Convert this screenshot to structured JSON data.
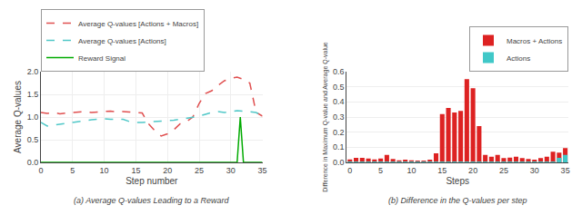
{
  "chart_data": [
    {
      "type": "line",
      "title": "(a) Average Q-values Leading to a Reward",
      "xlabel": "Step number",
      "ylabel": "Average Q-values",
      "xlim": [
        0,
        35
      ],
      "ylim": [
        0.0,
        2.0
      ],
      "xticks": [
        0,
        5,
        10,
        15,
        20,
        25,
        30,
        35
      ],
      "yticks": [
        {
          "value": 0.0,
          "label": "0.0"
        },
        0.5,
        {
          "value": 1.0,
          "label": "1.0"
        },
        1.5,
        {
          "value": 2.0,
          "label": "2.0"
        }
      ],
      "grid": true,
      "legend": "upper left",
      "series": [
        {
          "name": "Average Q-values [Actions + Macros]",
          "color": "#e05050",
          "line_style": "dashed",
          "x": [
            0,
            1,
            2,
            3,
            4,
            5,
            6,
            7,
            8,
            9,
            10,
            11,
            12,
            13,
            14,
            15,
            16,
            17,
            18,
            19,
            20,
            21,
            22,
            23,
            24,
            25,
            26,
            27,
            28,
            29,
            30,
            31,
            32,
            33,
            34,
            35
          ],
          "values": [
            1.1,
            1.08,
            1.1,
            1.07,
            1.09,
            1.1,
            1.11,
            1.12,
            1.1,
            1.11,
            1.12,
            1.13,
            1.11,
            1.12,
            1.11,
            1.1,
            1.09,
            0.85,
            0.7,
            0.58,
            0.63,
            0.72,
            0.85,
            0.9,
            1.0,
            1.3,
            1.52,
            1.58,
            1.7,
            1.8,
            1.85,
            1.88,
            1.83,
            1.75,
            1.1,
            1.02
          ]
        },
        {
          "name": "Average Q-values [Actions]",
          "color": "#50c8c8",
          "line_style": "dashed",
          "x": [
            0,
            1,
            2,
            3,
            4,
            5,
            6,
            7,
            8,
            9,
            10,
            11,
            12,
            13,
            14,
            15,
            16,
            17,
            18,
            19,
            20,
            21,
            22,
            23,
            24,
            25,
            26,
            27,
            28,
            29,
            30,
            31,
            32,
            33,
            34,
            35
          ],
          "values": [
            0.88,
            0.8,
            0.82,
            0.84,
            0.86,
            0.88,
            0.9,
            0.93,
            0.94,
            0.95,
            0.96,
            0.95,
            0.95,
            0.95,
            0.9,
            0.88,
            0.88,
            0.89,
            0.9,
            0.9,
            0.92,
            0.93,
            0.95,
            0.97,
            1.0,
            1.02,
            1.06,
            1.1,
            1.12,
            1.1,
            1.12,
            1.14,
            1.13,
            1.11,
            1.1,
            1.02
          ]
        },
        {
          "name": "Reward Signal",
          "color": "#00aa00",
          "line_style": "solid",
          "x": [
            0,
            28,
            29,
            30,
            30.5,
            31,
            31.5,
            32,
            33,
            34,
            35
          ],
          "values": [
            0,
            0,
            0,
            0,
            0.0,
            0.0,
            1.0,
            0.0,
            0,
            0,
            0
          ]
        }
      ]
    },
    {
      "type": "bar",
      "title": "(b) Difference in the Q-values per step",
      "xlabel": "Steps",
      "ylabel": "Difference in Maximum Q-value and Average Q-value",
      "x": [
        0,
        1,
        2,
        3,
        4,
        5,
        6,
        7,
        8,
        9,
        10,
        11,
        12,
        13,
        14,
        15,
        16,
        17,
        18,
        19,
        20,
        21,
        22,
        23,
        24,
        25,
        26,
        27,
        28,
        29,
        30,
        31,
        32,
        33,
        34,
        35
      ],
      "xlim": [
        -0.5,
        35.5
      ],
      "ylim": [
        0.0,
        0.6
      ],
      "xticks": [
        0,
        5,
        10,
        15,
        20,
        25,
        30,
        35
      ],
      "yticks": [
        {
          "value": 0.0,
          "label": "0.0"
        },
        0.1,
        0.2,
        0.3,
        0.4,
        0.5,
        0.6
      ],
      "grid": "y",
      "legend": "upper right",
      "stacked": false,
      "series": [
        {
          "name": "Macros + Actions",
          "color": "#dd2222",
          "values": [
            0.02,
            0.03,
            0.03,
            0.025,
            0.02,
            0.025,
            0.05,
            0.022,
            0.014,
            0.018,
            0.013,
            0.012,
            0.012,
            0.018,
            0.06,
            0.32,
            0.36,
            0.33,
            0.34,
            0.55,
            0.49,
            0.24,
            0.05,
            0.038,
            0.05,
            0.028,
            0.032,
            0.038,
            0.028,
            0.022,
            0.018,
            0.028,
            0.038,
            0.07,
            0.065,
            0.095
          ]
        },
        {
          "name": "Actions",
          "color": "#40c8c8",
          "values": [
            0.005,
            0.006,
            0.006,
            0.005,
            0.005,
            0.005,
            0.006,
            0.005,
            0.004,
            0.005,
            0.004,
            0.004,
            0.004,
            0.005,
            0.006,
            0.006,
            0.006,
            0.006,
            0.006,
            0.006,
            0.006,
            0.006,
            0.005,
            0.005,
            0.006,
            0.005,
            0.005,
            0.005,
            0.005,
            0.005,
            0.004,
            0.005,
            0.005,
            0.006,
            0.03,
            0.05
          ]
        }
      ]
    }
  ]
}
